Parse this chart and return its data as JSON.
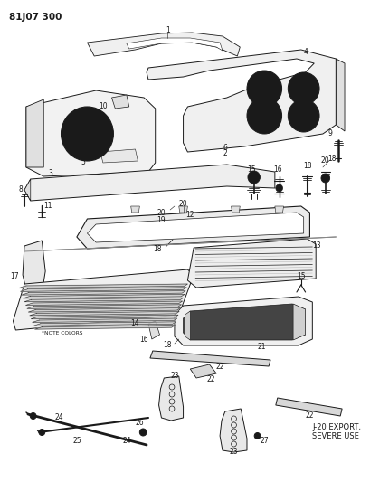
{
  "title": "81J07 300",
  "bg_color": "#ffffff",
  "line_color": "#1a1a1a",
  "annotations": {
    "note_colors": "*NOTE COLORS",
    "j20_text": "J-20 EXPORT,\nSEVERE USE"
  }
}
